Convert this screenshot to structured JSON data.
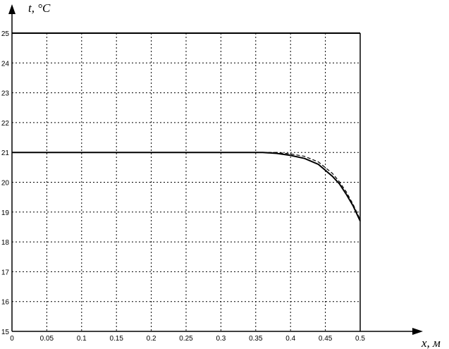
{
  "chart_data": {
    "type": "line",
    "title": "",
    "xlabel": "x, м",
    "ylabel": "t, °C",
    "xlim": [
      0,
      0.5
    ],
    "ylim": [
      15,
      25
    ],
    "xticks": [
      "0",
      "0.05",
      "0.1",
      "0.15",
      "0.2",
      "0.25",
      "0.3",
      "0.35",
      "0.4",
      "0.45",
      "0.5"
    ],
    "yticks": [
      "15",
      "16",
      "17",
      "18",
      "19",
      "20",
      "21",
      "22",
      "23",
      "24",
      "25"
    ],
    "grid": true,
    "series": [
      {
        "style": "solid",
        "color": "#000000",
        "x": [
          0,
          0.36,
          0.38,
          0.4,
          0.42,
          0.44,
          0.46,
          0.47,
          0.48,
          0.49,
          0.5
        ],
        "y": [
          21,
          21,
          20.97,
          20.9,
          20.8,
          20.6,
          20.2,
          19.95,
          19.6,
          19.2,
          18.7
        ]
      },
      {
        "style": "dashed",
        "color": "#000000",
        "x": [
          0.36,
          0.38,
          0.4,
          0.42,
          0.44,
          0.46,
          0.47,
          0.48,
          0.49,
          0.5
        ],
        "y": [
          21,
          21.0,
          20.95,
          20.87,
          20.68,
          20.3,
          20.02,
          19.68,
          19.25,
          18.75
        ]
      }
    ]
  }
}
